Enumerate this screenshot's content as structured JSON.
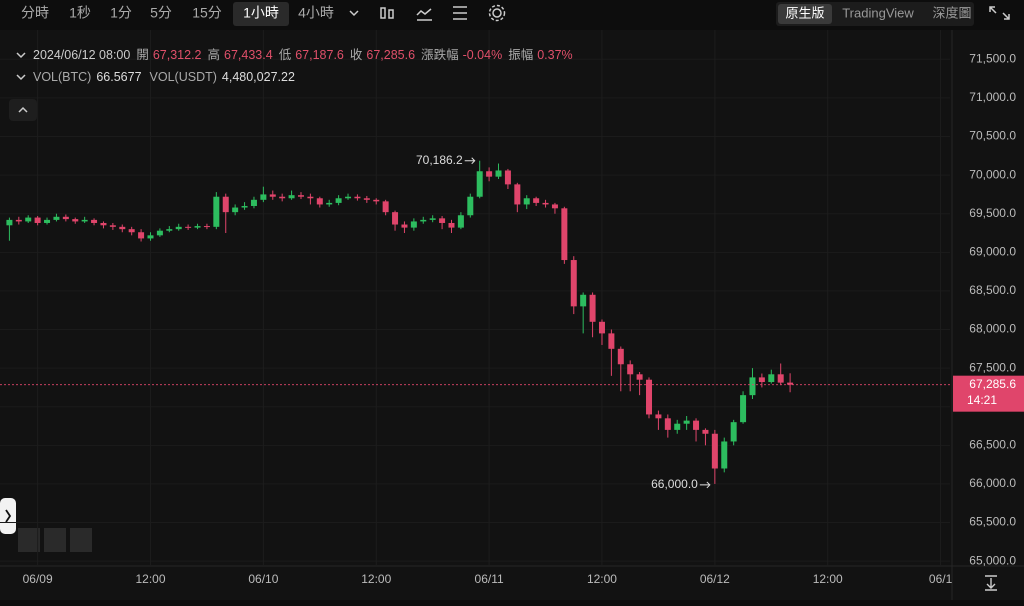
{
  "toolbar": {
    "intervals": [
      "分時",
      "1秒",
      "1分",
      "5分",
      "15分",
      "1小時",
      "4小時"
    ],
    "selected_interval": 5,
    "views": [
      "原生版",
      "TradingView",
      "深度圖"
    ],
    "selected_view": 0
  },
  "info": {
    "time": "2024/06/12 08:00",
    "items": [
      {
        "label": "開",
        "value": "67,312.2"
      },
      {
        "label": "高",
        "value": "67,433.4"
      },
      {
        "label": "低",
        "value": "67,187.6"
      },
      {
        "label": "收",
        "value": "67,285.6"
      },
      {
        "label": "漲跌幅",
        "value": "-0.04%"
      },
      {
        "label": "振幅",
        "value": "0.37%"
      }
    ],
    "volume": [
      {
        "label": "VOL(BTC)",
        "value": "66.5677"
      },
      {
        "label": "VOL(USDT)",
        "value": "4,480,027.22"
      }
    ]
  },
  "chart_data": {
    "type": "candlestick",
    "up_color": "#2dbd5f",
    "down_color": "#e0456b",
    "grid": true,
    "open": [
      69350,
      69420,
      69400,
      69450,
      69380,
      69420,
      69460,
      69430,
      69400,
      69420,
      69380,
      69350,
      69330,
      69300,
      69260,
      69180,
      69220,
      69280,
      69300,
      69330,
      69320,
      69340,
      69330,
      69720,
      69520,
      69580,
      69600,
      69680,
      69750,
      69720,
      69700,
      69740,
      69720,
      69700,
      69620,
      69640,
      69700,
      69720,
      69700,
      69680,
      69660,
      69520,
      69360,
      69320,
      69400,
      69420,
      69440,
      69380,
      69320,
      69480,
      69720,
      70050,
      69980,
      70060,
      69880,
      69620,
      69700,
      69640,
      69620,
      69570,
      68900,
      68300,
      68450,
      68100,
      67950,
      67750,
      67550,
      67420,
      67350,
      66900,
      66850,
      66700,
      66780,
      66820,
      66700,
      66650,
      66200,
      66550,
      66800,
      67150,
      67380,
      67320,
      67420,
      67312.2
    ],
    "high": [
      69450,
      69460,
      69480,
      69470,
      69450,
      69500,
      69490,
      69450,
      69460,
      69440,
      69400,
      69380,
      69360,
      69330,
      69300,
      69260,
      69310,
      69340,
      69370,
      69360,
      69370,
      69370,
      69780,
      69760,
      69620,
      69650,
      69720,
      69850,
      69800,
      69760,
      69800,
      69780,
      69760,
      69720,
      69680,
      69740,
      69760,
      69750,
      69730,
      69700,
      69680,
      69540,
      69400,
      69440,
      69460,
      69480,
      69470,
      69420,
      69520,
      69760,
      70186.2,
      70100,
      70150,
      70080,
      69900,
      69740,
      69720,
      69680,
      69640,
      69590,
      68950,
      68480,
      68480,
      68130,
      68000,
      67780,
      67600,
      67450,
      67380,
      66950,
      66900,
      66830,
      66880,
      66850,
      66720,
      66700,
      66600,
      66830,
      67200,
      67500,
      67430,
      67480,
      67560,
      67433.4
    ],
    "low": [
      69150,
      69360,
      69380,
      69350,
      69360,
      69400,
      69400,
      69370,
      69380,
      69350,
      69310,
      69290,
      69260,
      69220,
      69140,
      69150,
      69200,
      69260,
      69280,
      69290,
      69300,
      69300,
      69300,
      69250,
      69480,
      69550,
      69570,
      69650,
      69680,
      69660,
      69680,
      69690,
      69620,
      69580,
      69590,
      69610,
      69680,
      69670,
      69640,
      69620,
      69480,
      69280,
      69250,
      69280,
      69370,
      69390,
      69300,
      69250,
      69300,
      69450,
      69700,
      69920,
      69950,
      69820,
      69520,
      69560,
      69600,
      69580,
      69500,
      68850,
      68200,
      67950,
      67900,
      67800,
      67400,
      67200,
      67200,
      67150,
      66850,
      66700,
      66600,
      66650,
      66700,
      66550,
      66500,
      66000,
      66150,
      66500,
      66780,
      67100,
      67250,
      67300,
      67280,
      67187.6
    ],
    "close": [
      69420,
      69400,
      69450,
      69380,
      69420,
      69460,
      69430,
      69400,
      69420,
      69380,
      69350,
      69330,
      69300,
      69260,
      69180,
      69220,
      69280,
      69300,
      69330,
      69320,
      69340,
      69330,
      69720,
      69520,
      69580,
      69600,
      69680,
      69750,
      69720,
      69700,
      69740,
      69720,
      69700,
      69620,
      69640,
      69700,
      69720,
      69700,
      69680,
      69660,
      69520,
      69360,
      69320,
      69400,
      69420,
      69440,
      69380,
      69320,
      69480,
      69720,
      70050,
      69980,
      70060,
      69880,
      69620,
      69700,
      69640,
      69620,
      69570,
      68900,
      68300,
      68450,
      68100,
      67950,
      67750,
      67550,
      67420,
      67350,
      66900,
      66850,
      66700,
      66780,
      66820,
      66700,
      66650,
      66200,
      66550,
      66800,
      67150,
      67380,
      67320,
      67420,
      67312.2,
      67285.6
    ],
    "xlim": [
      -1,
      100
    ],
    "ylim": [
      64950,
      71750
    ],
    "xticks": [
      {
        "value": 3,
        "label": "06/09"
      },
      {
        "value": 15,
        "label": "12:00"
      },
      {
        "value": 27,
        "label": "06/10"
      },
      {
        "value": 39,
        "label": "12:00"
      },
      {
        "value": 51,
        "label": "06/11"
      },
      {
        "value": 63,
        "label": "12:00"
      },
      {
        "value": 75,
        "label": "06/12"
      },
      {
        "value": 87,
        "label": "12:00"
      },
      {
        "value": 99,
        "label": "06/1"
      }
    ],
    "yticks": [
      {
        "value": 65000,
        "label": "65,000.0"
      },
      {
        "value": 65500,
        "label": "65,500.0"
      },
      {
        "value": 66000,
        "label": "66,000.0"
      },
      {
        "value": 66500,
        "label": "66,500.0"
      },
      {
        "value": 67000,
        "label": "67,000.0"
      },
      {
        "value": 67500,
        "label": "67,500.0"
      },
      {
        "value": 68000,
        "label": "68,000.0"
      },
      {
        "value": 68500,
        "label": "68,500.0"
      },
      {
        "value": 69000,
        "label": "69,000.0"
      },
      {
        "value": 69500,
        "label": "69,500.0"
      },
      {
        "value": 70000,
        "label": "70,000.0"
      },
      {
        "value": 70500,
        "label": "70,500.0"
      },
      {
        "value": 71000,
        "label": "71,000.0"
      },
      {
        "value": 71500,
        "label": "71,500.0"
      }
    ],
    "high_label": "70,186.2",
    "low_label": "66,000.0",
    "last_price_label": "67,285.6",
    "countdown": "14:21"
  }
}
